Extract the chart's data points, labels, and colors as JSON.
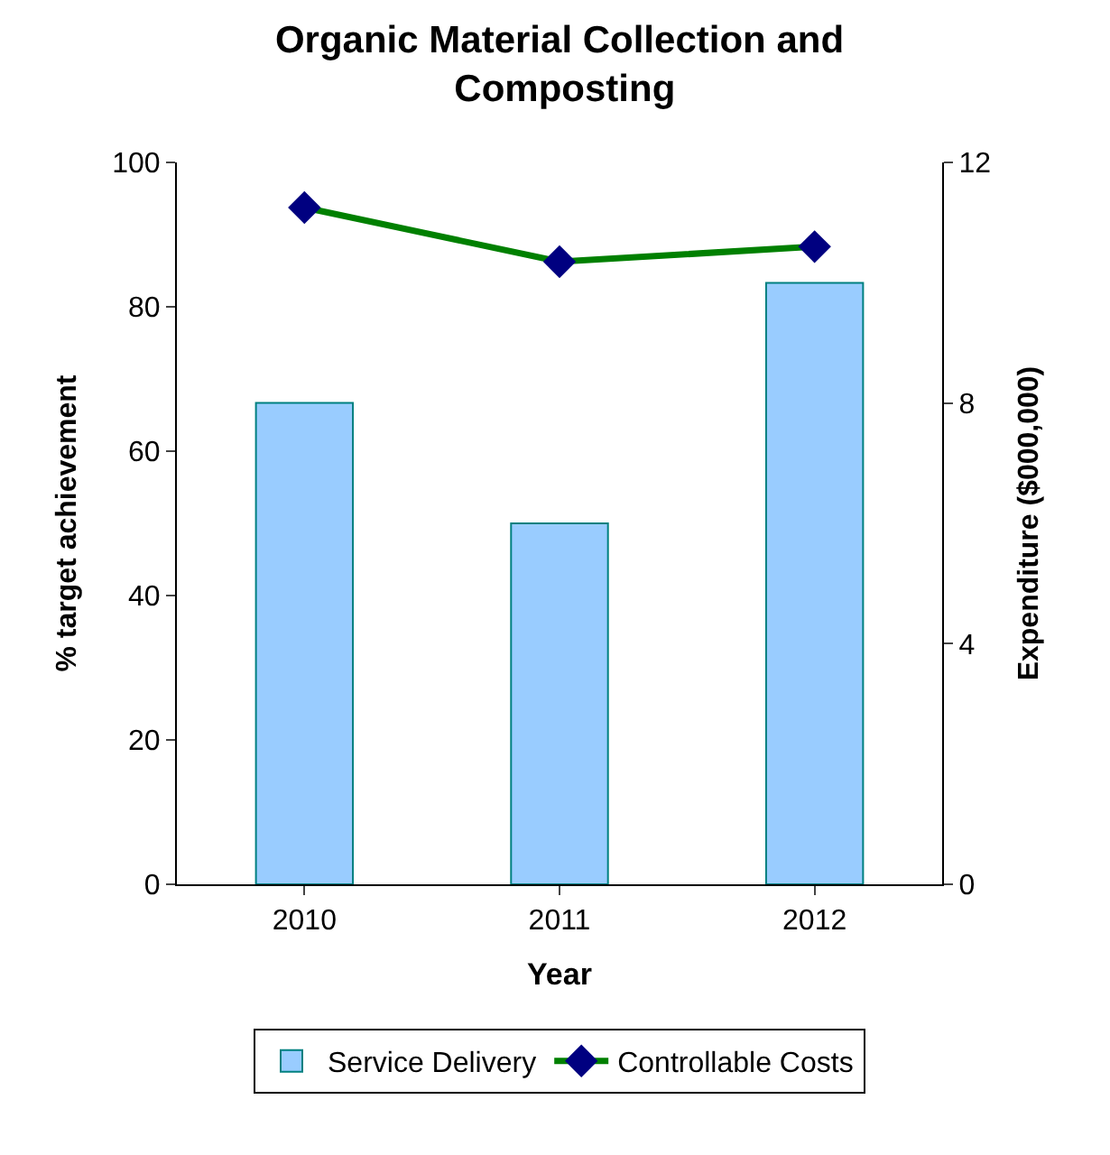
{
  "chart_data": {
    "type": "bar",
    "title": "Organic Material Collection and Composting",
    "xlabel": "Year",
    "ylabel": "% target achievement",
    "y2label": "Expenditure ($000,000)",
    "categories": [
      "2010",
      "2011",
      "2012"
    ],
    "series": [
      {
        "name": "Service Delivery",
        "color": "#99ccff",
        "values": [
          66.7,
          50,
          83.3
        ]
      },
      {
        "name": "Controllable Costs",
        "type": "line",
        "axis": "y2",
        "color": "#008000",
        "values": [
          11.25,
          10.35,
          10.6
        ]
      }
    ],
    "ylim": [
      0,
      100
    ],
    "yticks": [
      0,
      20,
      40,
      60,
      80,
      100
    ],
    "y2lim": [
      0,
      12
    ],
    "y2ticks": [
      0,
      4,
      8,
      12
    ],
    "legend": "bottom",
    "marker": "diamond"
  }
}
